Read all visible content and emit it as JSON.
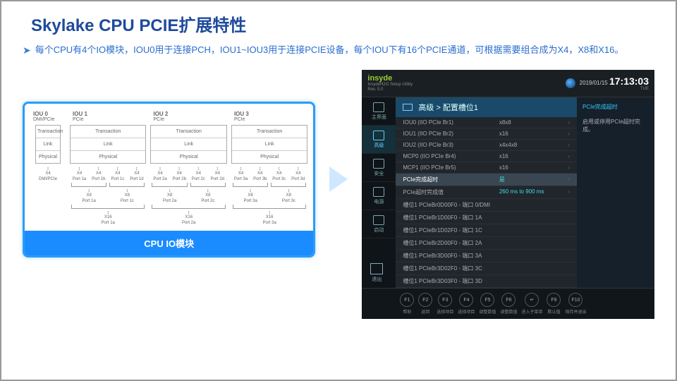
{
  "title": "Skylake CPU PCIE扩展特性",
  "description": "每个CPU有4个IO模块，IOU0用于连接PCH，IOU1~IOU3用于连接PCIE设备，每个IOU下有16个PCIE通道，可根据需要组合成为X4，X8和X16。",
  "left_caption": "CPU IO模块",
  "iou": {
    "layers": [
      "Transaction",
      "Link",
      "Physical"
    ],
    "cols": [
      {
        "name": "IOU 0",
        "sub": "DMI/PCIe",
        "wide": false,
        "x4": [
          "X4"
        ],
        "ports1": [
          "DMI/PCIe"
        ]
      },
      {
        "name": "IOU 1",
        "sub": "PCIe",
        "wide": true,
        "x4": [
          "X4",
          "X4",
          "X4",
          "X4"
        ],
        "ports1": [
          "Port 1a",
          "Port 1b",
          "Port 1c",
          "Port 1d"
        ],
        "x8": [
          "X8",
          "X8"
        ],
        "ports2": [
          "Port 1a",
          "Port 1c"
        ],
        "x16": [
          "X16"
        ],
        "ports3": [
          "Port 1a"
        ]
      },
      {
        "name": "IOU 2",
        "sub": "PCIe",
        "wide": true,
        "x4": [
          "X4",
          "X4",
          "X4",
          "X4"
        ],
        "ports1": [
          "Port 2a",
          "Port 2b",
          "Port 2c",
          "Port 2d"
        ],
        "x8": [
          "X8",
          "X8"
        ],
        "ports2": [
          "Port 2a",
          "Port 2c"
        ],
        "x16": [
          "X16"
        ],
        "ports3": [
          "Port 2a"
        ]
      },
      {
        "name": "IOU 3",
        "sub": "PCIe",
        "wide": true,
        "x4": [
          "X4",
          "X4",
          "X4",
          "X4"
        ],
        "ports1": [
          "Port 3a",
          "Port 3b",
          "Port 3c",
          "Port 3d"
        ],
        "x8": [
          "X8",
          "X8"
        ],
        "ports2": [
          "Port 3a",
          "Port 3c"
        ],
        "x16": [
          "X16"
        ],
        "ports3": [
          "Port 3a"
        ]
      }
    ]
  },
  "bios": {
    "logo": "insyde",
    "subtext1": "InsydeH2O Setup Utility",
    "subtext2": "Rev. 5.0",
    "date": "2019/01/15",
    "time": "17:13:03",
    "day": "TUE",
    "breadcrumb": "高级 > 配置槽位1",
    "side": [
      {
        "label": "主界面"
      },
      {
        "label": "高级"
      },
      {
        "label": "安全"
      },
      {
        "label": "电源"
      },
      {
        "label": "启动"
      }
    ],
    "rows": [
      {
        "k": "IOU0 (IIO PCIe Br1)",
        "v": "x8x8",
        "chev": true
      },
      {
        "k": "IOU1 (IIO PCIe Br2)",
        "v": "x16",
        "chev": true
      },
      {
        "k": "IOU2 (IIO PCIe Br3)",
        "v": "x4x4x8",
        "chev": true
      },
      {
        "k": "MCP0 (IIO PCIe Br4)",
        "v": "x16",
        "chev": true
      },
      {
        "k": "MCP1 (IIO PCIe Br5)",
        "v": "x16",
        "chev": true
      },
      {
        "k": "PCIe完成超时",
        "v": "是",
        "sel": true,
        "cyan": true,
        "chev": true
      },
      {
        "k": "PCIe超时完成值",
        "v": "260 ms to 900 ms",
        "cyan": true,
        "chev": true
      },
      {
        "k": "槽位1 PCIeBr0D00F0 - 端口 0/DMI",
        "v": ""
      },
      {
        "k": "槽位1 PCIeBr1D00F0 - 端口 1A",
        "v": ""
      },
      {
        "k": "槽位1 PCIeBr1D02F0 - 端口 1C",
        "v": ""
      },
      {
        "k": "槽位1 PCIeBr2D00F0 - 端口 2A",
        "v": ""
      },
      {
        "k": "槽位1 PCIeBr3D00F0 - 端口 3A",
        "v": ""
      },
      {
        "k": "槽位1 PCIeBr3D02F0 - 端口 3C",
        "v": ""
      },
      {
        "k": "槽位1 PCIeBr3D03F0 - 端口 3D",
        "v": ""
      }
    ],
    "help_title": "PCIe完成超时",
    "help_body": "启用或停用PCIe超时完成。",
    "fkeys": [
      {
        "c": "F1",
        "l": "帮助"
      },
      {
        "c": "F2",
        "l": "返回"
      },
      {
        "c": "F3",
        "l": "选择项目"
      },
      {
        "c": "F4",
        "l": "选择项目"
      },
      {
        "c": "F5",
        "l": "调整数值"
      },
      {
        "c": "F6",
        "l": "调整数值"
      },
      {
        "c": "↵",
        "l": "进入子菜单"
      },
      {
        "c": "F9",
        "l": "默认值"
      },
      {
        "c": "F10",
        "l": "保存并退出"
      }
    ],
    "exit": "退出"
  },
  "colors": {
    "title": "#1e4a9c",
    "bullet": "#3a7bd5",
    "panel_border": "#2a9df4",
    "caption_bg": "#1a8cff",
    "bios_bg": "#1a1f24"
  }
}
